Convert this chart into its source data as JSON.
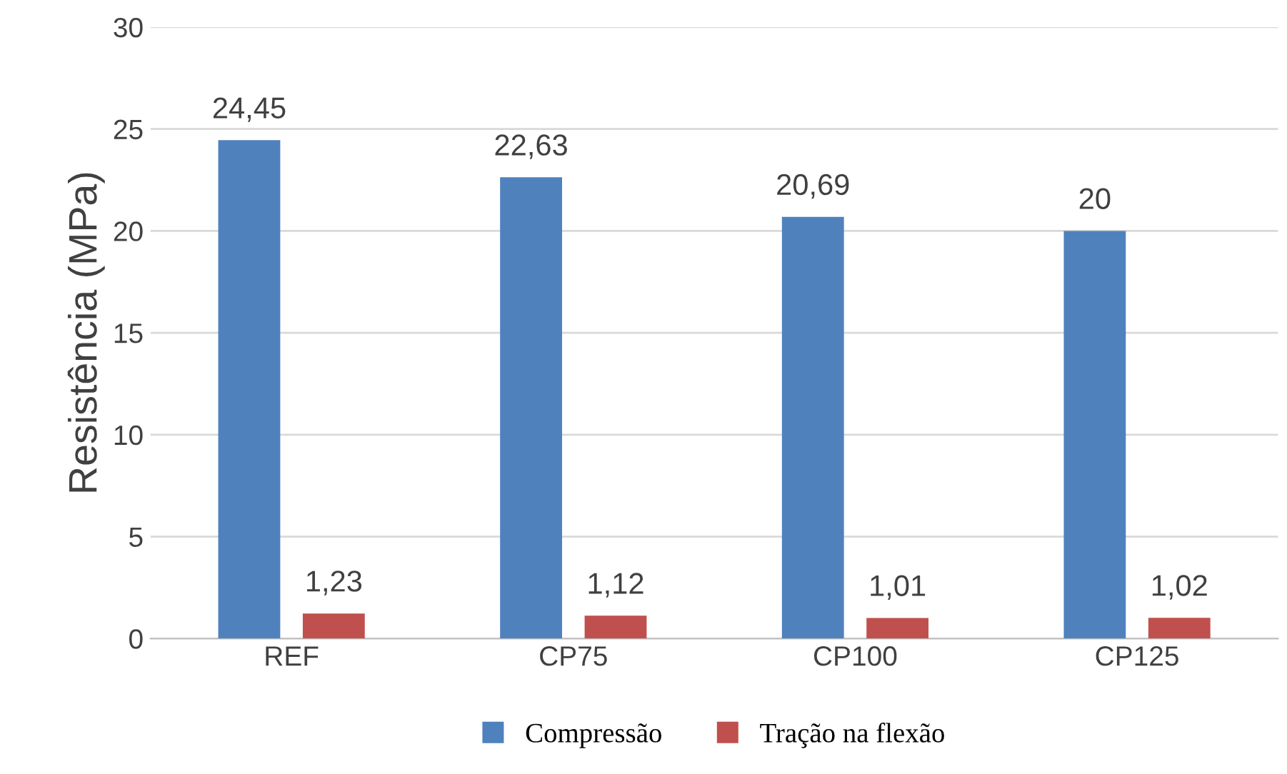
{
  "chart_data": {
    "type": "bar",
    "ylabel": "Resistência (MPa)",
    "categories": [
      "REF",
      "CP75",
      "CP100",
      "CP125"
    ],
    "series": [
      {
        "name": "Compressão",
        "color": "#4f81bd",
        "values": [
          24.45,
          22.63,
          20.69,
          20
        ],
        "value_labels": [
          "24,45",
          "22,63",
          "20,69",
          "20"
        ]
      },
      {
        "name": "Tração na flexão",
        "color": "#c0504d",
        "values": [
          1.23,
          1.12,
          1.01,
          1.02
        ],
        "value_labels": [
          "1,23",
          "1,12",
          "1,01",
          "1,02"
        ]
      }
    ],
    "ylim": [
      0,
      30
    ],
    "yticks": [
      0,
      5,
      10,
      15,
      20,
      25,
      30
    ],
    "grid": "y",
    "legend": "bottom"
  }
}
